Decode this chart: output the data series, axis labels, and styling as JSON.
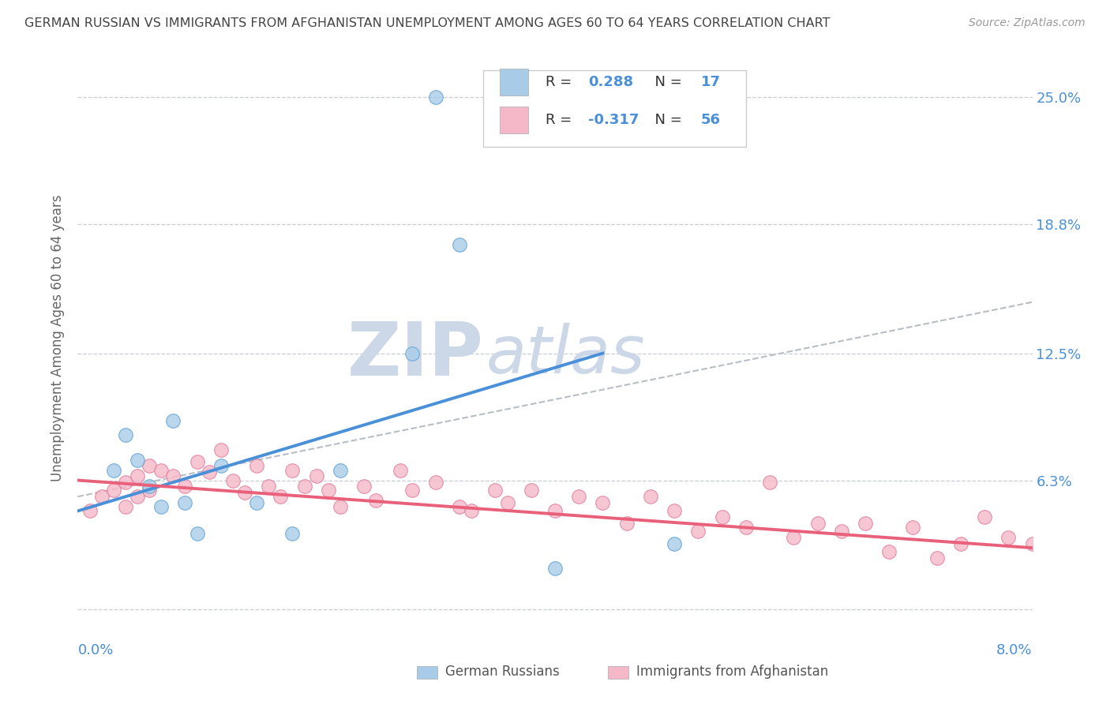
{
  "title": "GERMAN RUSSIAN VS IMMIGRANTS FROM AFGHANISTAN UNEMPLOYMENT AMONG AGES 60 TO 64 YEARS CORRELATION CHART",
  "source": "Source: ZipAtlas.com",
  "ylabel": "Unemployment Among Ages 60 to 64 years",
  "ytick_labels": [
    "",
    "6.3%",
    "12.5%",
    "18.8%",
    "25.0%"
  ],
  "ytick_values": [
    0.0,
    0.063,
    0.125,
    0.188,
    0.25
  ],
  "xlim": [
    0.0,
    0.08
  ],
  "ylim": [
    -0.005,
    0.27
  ],
  "blue_scatter_color": "#a8cce8",
  "blue_scatter_edge": "#5a9fd4",
  "pink_scatter_color": "#f5b8c8",
  "pink_scatter_edge": "#e07898",
  "blue_line_color": "#4a90d9",
  "pink_line_color": "#e8607a",
  "dashed_color": "#b8bec4",
  "grid_color": "#c8cdd2",
  "bg_color": "#ffffff",
  "right_label_color": "#4a90d9",
  "title_color": "#444444",
  "source_color": "#999999",
  "watermark_zip_color": "#ccd8e8",
  "watermark_atlas_color": "#ccd8e8",
  "legend_num_color": "#4a90d9",
  "legend_box_edge": "#cccccc",
  "gr_x": [
    0.003,
    0.004,
    0.005,
    0.006,
    0.007,
    0.008,
    0.009,
    0.01,
    0.012,
    0.015,
    0.018,
    0.022,
    0.028,
    0.03,
    0.032,
    0.04,
    0.05
  ],
  "gr_y": [
    0.068,
    0.085,
    0.073,
    0.06,
    0.05,
    0.092,
    0.052,
    0.037,
    0.07,
    0.052,
    0.037,
    0.068,
    0.125,
    0.25,
    0.178,
    0.02,
    0.032
  ],
  "af_x": [
    0.001,
    0.002,
    0.003,
    0.004,
    0.004,
    0.005,
    0.005,
    0.006,
    0.006,
    0.007,
    0.008,
    0.009,
    0.01,
    0.011,
    0.012,
    0.013,
    0.014,
    0.015,
    0.016,
    0.017,
    0.018,
    0.019,
    0.02,
    0.021,
    0.022,
    0.024,
    0.025,
    0.027,
    0.028,
    0.03,
    0.032,
    0.033,
    0.035,
    0.036,
    0.038,
    0.04,
    0.042,
    0.044,
    0.046,
    0.048,
    0.05,
    0.052,
    0.054,
    0.056,
    0.058,
    0.06,
    0.062,
    0.064,
    0.066,
    0.068,
    0.07,
    0.072,
    0.074,
    0.076,
    0.078,
    0.08
  ],
  "af_y": [
    0.048,
    0.055,
    0.058,
    0.062,
    0.05,
    0.065,
    0.055,
    0.07,
    0.058,
    0.068,
    0.065,
    0.06,
    0.072,
    0.067,
    0.078,
    0.063,
    0.057,
    0.07,
    0.06,
    0.055,
    0.068,
    0.06,
    0.065,
    0.058,
    0.05,
    0.06,
    0.053,
    0.068,
    0.058,
    0.062,
    0.05,
    0.048,
    0.058,
    0.052,
    0.058,
    0.048,
    0.055,
    0.052,
    0.042,
    0.055,
    0.048,
    0.038,
    0.045,
    0.04,
    0.062,
    0.035,
    0.042,
    0.038,
    0.042,
    0.028,
    0.04,
    0.025,
    0.032,
    0.045,
    0.035,
    0.032
  ],
  "blue_line_x0": 0.0,
  "blue_line_y0": 0.048,
  "blue_line_x1": 0.044,
  "blue_line_y1": 0.125,
  "pink_line_x0": 0.0,
  "pink_line_y0": 0.063,
  "pink_line_x1": 0.08,
  "pink_line_y1": 0.03,
  "dash_line_x0": 0.0,
  "dash_line_y0": 0.055,
  "dash_line_x1": 0.08,
  "dash_line_y1": 0.15
}
